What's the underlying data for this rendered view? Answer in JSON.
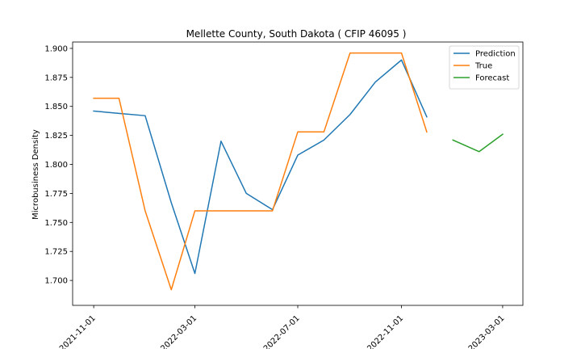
{
  "chart_data": {
    "type": "line",
    "title": "Mellette County, South Dakota ( CFIP 46095 )",
    "xlabel": "",
    "ylabel": "Microbusiness Density",
    "xlim": [
      "2021-10-07",
      "2023-03-25"
    ],
    "ylim": [
      1.6785,
      1.9055
    ],
    "x_ticks": [
      "2021-11-01",
      "2022-03-01",
      "2022-07-01",
      "2022-11-01",
      "2023-03-01"
    ],
    "y_ticks": [
      "1.700",
      "1.725",
      "1.750",
      "1.775",
      "1.800",
      "1.825",
      "1.850",
      "1.875",
      "1.900"
    ],
    "legend_position": "top-right",
    "grid": false,
    "series": [
      {
        "name": "Prediction",
        "color": "#1f77b4",
        "points": [
          {
            "x": "2021-11-01",
            "y": 1.846
          },
          {
            "x": "2021-12-01",
            "y": 1.844
          },
          {
            "x": "2022-01-01",
            "y": 1.842
          },
          {
            "x": "2022-02-01",
            "y": 1.767
          },
          {
            "x": "2022-03-01",
            "y": 1.706
          },
          {
            "x": "2022-04-01",
            "y": 1.82
          },
          {
            "x": "2022-05-01",
            "y": 1.775
          },
          {
            "x": "2022-06-01",
            "y": 1.761
          },
          {
            "x": "2022-07-01",
            "y": 1.808
          },
          {
            "x": "2022-08-01",
            "y": 1.821
          },
          {
            "x": "2022-09-01",
            "y": 1.843
          },
          {
            "x": "2022-10-01",
            "y": 1.871
          },
          {
            "x": "2022-11-01",
            "y": 1.89
          },
          {
            "x": "2022-12-01",
            "y": 1.841
          }
        ]
      },
      {
        "name": "True",
        "color": "#ff7f0e",
        "points": [
          {
            "x": "2021-11-01",
            "y": 1.857
          },
          {
            "x": "2021-12-01",
            "y": 1.857
          },
          {
            "x": "2022-01-01",
            "y": 1.76
          },
          {
            "x": "2022-02-01",
            "y": 1.692
          },
          {
            "x": "2022-03-01",
            "y": 1.76
          },
          {
            "x": "2022-04-01",
            "y": 1.76
          },
          {
            "x": "2022-05-01",
            "y": 1.76
          },
          {
            "x": "2022-06-01",
            "y": 1.76
          },
          {
            "x": "2022-07-01",
            "y": 1.828
          },
          {
            "x": "2022-08-01",
            "y": 1.828
          },
          {
            "x": "2022-09-01",
            "y": 1.896
          },
          {
            "x": "2022-10-01",
            "y": 1.896
          },
          {
            "x": "2022-11-01",
            "y": 1.896
          },
          {
            "x": "2022-12-01",
            "y": 1.828
          }
        ]
      },
      {
        "name": "Forecast",
        "color": "#2ca02c",
        "points": [
          {
            "x": "2023-01-01",
            "y": 1.821
          },
          {
            "x": "2023-02-01",
            "y": 1.811
          },
          {
            "x": "2023-03-01",
            "y": 1.826
          }
        ]
      }
    ]
  }
}
